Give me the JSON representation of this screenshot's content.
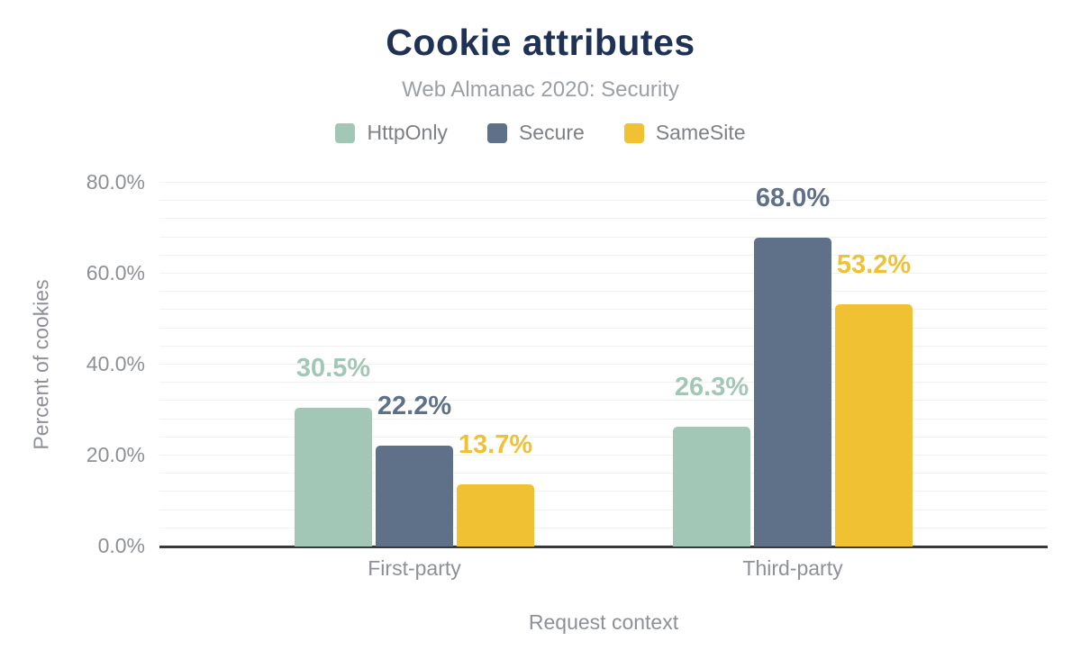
{
  "header": {
    "title": "Cookie attributes",
    "subtitle": "Web Almanac 2020: Security"
  },
  "chart_data": {
    "type": "bar",
    "title": "Cookie attributes",
    "subtitle": "Web Almanac 2020: Security",
    "categories": [
      "First-party",
      "Third-party"
    ],
    "series": [
      {
        "name": "HttpOnly",
        "color": "#a3c7b6",
        "values": [
          30.5,
          26.3
        ]
      },
      {
        "name": "Secure",
        "color": "#5f7089",
        "values": [
          22.2,
          68.0
        ]
      },
      {
        "name": "SameSite",
        "color": "#f0c233",
        "values": [
          13.7,
          53.2
        ]
      }
    ],
    "data_labels": [
      [
        "30.5%",
        "22.2%",
        "13.7%"
      ],
      [
        "26.3%",
        "68.0%",
        "53.2%"
      ]
    ],
    "xlabel": "Request context",
    "ylabel": "Percent of cookies",
    "y_ticks": [
      {
        "value": 0,
        "label": "0.0%"
      },
      {
        "value": 20,
        "label": "20.0%"
      },
      {
        "value": 40,
        "label": "40.0%"
      },
      {
        "value": 60,
        "label": "60.0%"
      },
      {
        "value": 80,
        "label": "80.0%"
      }
    ],
    "ylim": [
      0,
      80
    ],
    "minor_grid_step": 4,
    "grid": true,
    "legend_position": "top"
  },
  "colors": {
    "title_text": "#1f3154",
    "subtitle_text": "#9aa0a6",
    "axis_text": "#8d9196",
    "legend_text": "#7d8084",
    "grid_line": "#f2f2f2",
    "axis_line": "#37393b",
    "background": "#ffffff"
  }
}
